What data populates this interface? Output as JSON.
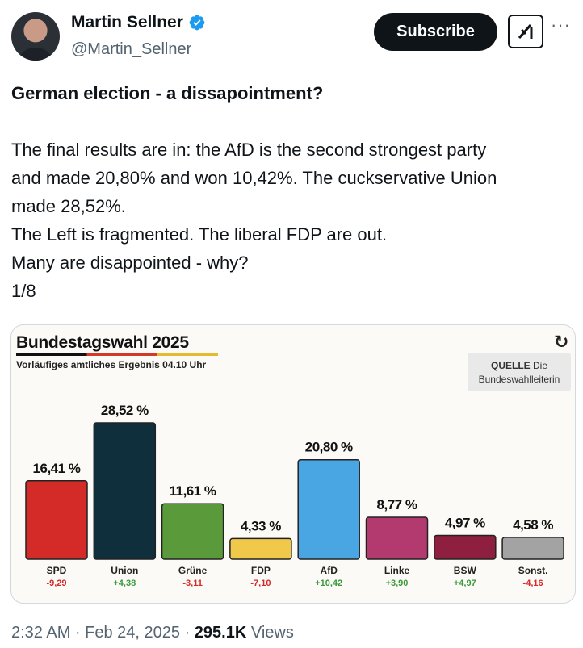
{
  "author": {
    "name": "Martin Sellner",
    "handle": "@Martin_Sellner"
  },
  "header": {
    "subscribe_label": "Subscribe",
    "more_label": "···"
  },
  "post": {
    "headline": "German election - a dissapointment?",
    "lines": [
      "The final results are in: the AfD is the second strongest party",
      "and made 20,80% and won 10,42%. The cuckservative Union",
      "made 28,52%.",
      "The Left is fragmented. The liberal FDP are out.",
      "Many are disappointed - why?",
      "1/8"
    ]
  },
  "media": {
    "chart_title": "Bundestagswahl 2025",
    "chart_subtitle": "Vorläufiges amtliches Ergebnis 04.10 Uhr",
    "source_label": "QUELLE",
    "source_rest": "Die",
    "source_line2": "Bundeswahlleiterin"
  },
  "chart_data": {
    "type": "bar",
    "title": "Bundestagswahl 2025",
    "categories": [
      "SPD",
      "Union",
      "Grüne",
      "FDP",
      "AfD",
      "Linke",
      "BSW",
      "Sonst."
    ],
    "values": [
      16.41,
      28.52,
      11.61,
      4.33,
      20.8,
      8.77,
      4.97,
      4.58
    ],
    "value_labels": [
      "16,41 %",
      "28,52 %",
      "11,61 %",
      "4,33 %",
      "20,80 %",
      "8,77 %",
      "4,97 %",
      "4,58 %"
    ],
    "changes": [
      "-9,29",
      "+4,38",
      "-3,11",
      "-7,10",
      "+10,42",
      "+3,90",
      "+4,97",
      "-4,16"
    ],
    "colors": [
      "#d42a28",
      "#0f2f3d",
      "#5a9a3a",
      "#f0c84a",
      "#4aa6e3",
      "#b23a6f",
      "#8e1f3e",
      "#a3a3a3"
    ],
    "change_colors": [
      "#d42a28",
      "#3a9a3a",
      "#d42a28",
      "#d42a28",
      "#3a9a3a",
      "#3a9a3a",
      "#3a9a3a",
      "#d42a28"
    ],
    "ylim": [
      0,
      30
    ]
  },
  "footer": {
    "time": "2:32 AM · Feb 24, 2025 · ",
    "views_count": "295.1K",
    "views_label": " Views"
  }
}
